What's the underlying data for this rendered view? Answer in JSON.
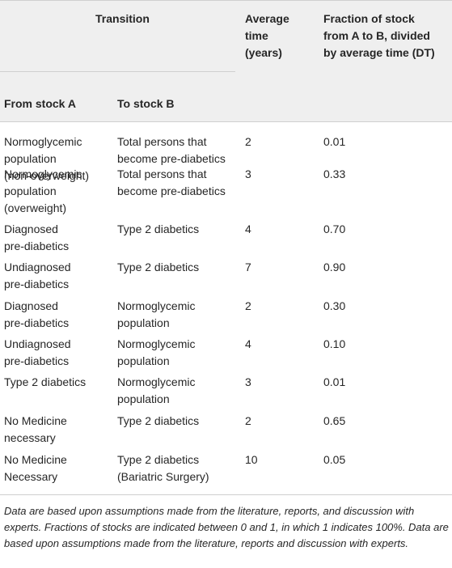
{
  "header": {
    "transition": "Transition",
    "average_time": [
      "Average",
      "time",
      "(years)"
    ],
    "fraction": [
      "Fraction of stock",
      "from A to B, divided",
      "by average time (DT)"
    ],
    "from_stock": "From stock A",
    "to_stock": "To stock B"
  },
  "rows": [
    {
      "from": [
        "Normoglycemic",
        "population",
        "(non-overweight)"
      ],
      "to": [
        "Total persons that",
        "become pre-diabetics"
      ],
      "time": "2",
      "fraction": "0.01"
    },
    {
      "from": [
        "Normoglycemic",
        "population",
        "(overweight)"
      ],
      "to": [
        "Total persons that",
        "become pre-diabetics"
      ],
      "time": "3",
      "fraction": "0.33"
    },
    {
      "from": [
        "Diagnosed",
        "pre-diabetics"
      ],
      "to": [
        "Type 2 diabetics"
      ],
      "time": "4",
      "fraction": "0.70"
    },
    {
      "from": [
        "Undiagnosed",
        "pre-diabetics"
      ],
      "to": [
        "Type 2 diabetics"
      ],
      "time": "7",
      "fraction": "0.90"
    },
    {
      "from": [
        "Diagnosed",
        "pre-diabetics"
      ],
      "to": [
        "Normoglycemic",
        "population"
      ],
      "time": "2",
      "fraction": "0.30"
    },
    {
      "from": [
        "Undiagnosed",
        "pre-diabetics"
      ],
      "to": [
        "Normoglycemic",
        "population"
      ],
      "time": "4",
      "fraction": "0.10"
    },
    {
      "from": [
        "Type 2 diabetics"
      ],
      "to": [
        "Normoglycemic",
        "population"
      ],
      "time": "3",
      "fraction": "0.01"
    },
    {
      "from": [
        "No Medicine",
        "necessary"
      ],
      "to": [
        "Type 2 diabetics"
      ],
      "time": "2",
      "fraction": "0.65"
    },
    {
      "from": [
        "No Medicine",
        "Necessary"
      ],
      "to": [
        "Type 2 diabetics",
        "(Bariatric Surgery)"
      ],
      "time": "10",
      "fraction": "0.05"
    }
  ],
  "footnote": "Data are based upon assumptions made from the literature, reports, and discussion with experts. Fractions of stocks are indicated between 0 and 1, in which 1 indicates 100%. Data are based upon assumptions made from the literature, reports and discussion with experts."
}
